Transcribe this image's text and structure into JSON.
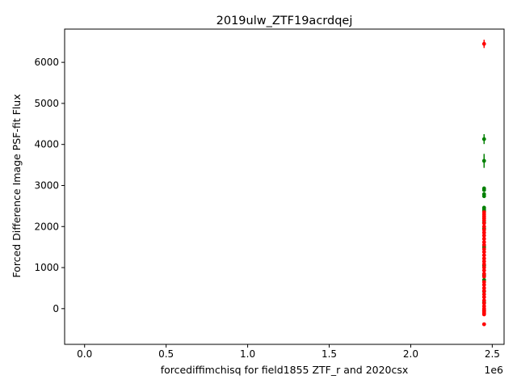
{
  "chart_data": {
    "type": "scatter",
    "title": "2019ulw_ZTF19acrdqej",
    "xlabel": "forcediffimchisq for field1855 ZTF_r and 2020csx",
    "ylabel": "Forced Difference Image PSF-fit Flux",
    "x_offset_label": "1e6",
    "x_multiplier": 1000000,
    "xlim": [
      -0.1225,
      2.5725
    ],
    "ylim": [
      -870,
      6810
    ],
    "x_ticks": [
      0.0,
      0.5,
      1.0,
      1.5,
      2.0,
      2.5
    ],
    "x_tick_labels": [
      "0.0",
      "0.5",
      "1.0",
      "1.5",
      "2.0",
      "2.5"
    ],
    "y_ticks": [
      0,
      1000,
      2000,
      3000,
      4000,
      5000,
      6000
    ],
    "y_tick_labels": [
      "0",
      "1000",
      "2000",
      "3000",
      "4000",
      "5000",
      "6000"
    ],
    "grid": false,
    "legend": "none",
    "series": [
      {
        "color": "#008000",
        "points": [
          {
            "x": 2.45,
            "y": 4130,
            "err": 120
          },
          {
            "x": 2.45,
            "y": 3600,
            "err": 170
          },
          {
            "x": 2.45,
            "y": 2930,
            "err": 30
          },
          {
            "x": 2.45,
            "y": 2890,
            "err": 30
          },
          {
            "x": 2.45,
            "y": 2790,
            "err": 30
          },
          {
            "x": 2.45,
            "y": 2740,
            "err": 30
          },
          {
            "x": 2.45,
            "y": 2460,
            "err": 30
          },
          {
            "x": 2.45,
            "y": 2420,
            "err": 30
          },
          {
            "x": 2.45,
            "y": 2380,
            "err": 30
          },
          {
            "x": 2.45,
            "y": 2100,
            "err": 40
          },
          {
            "x": 2.45,
            "y": 1950,
            "err": 40
          },
          {
            "x": 2.45,
            "y": 1500,
            "err": 40
          },
          {
            "x": 2.45,
            "y": 1050,
            "err": 40
          },
          {
            "x": 2.45,
            "y": 820,
            "err": 40
          },
          {
            "x": 2.45,
            "y": 700,
            "err": 40
          },
          {
            "x": 2.45,
            "y": 420,
            "err": 40
          },
          {
            "x": 2.45,
            "y": 150,
            "err": 40
          },
          {
            "x": 2.45,
            "y": -50,
            "err": 40
          }
        ]
      },
      {
        "color": "#ff0000",
        "points": [
          {
            "x": 2.45,
            "y": 6450,
            "err": 100
          },
          {
            "x": 2.45,
            "y": 2350,
            "err": 40
          },
          {
            "x": 2.45,
            "y": 2300,
            "err": 40
          },
          {
            "x": 2.45,
            "y": 2250,
            "err": 40
          },
          {
            "x": 2.45,
            "y": 2200,
            "err": 40
          },
          {
            "x": 2.45,
            "y": 2150,
            "err": 40
          },
          {
            "x": 2.45,
            "y": 2080,
            "err": 40
          },
          {
            "x": 2.45,
            "y": 2000,
            "err": 40
          },
          {
            "x": 2.45,
            "y": 1920,
            "err": 40
          },
          {
            "x": 2.45,
            "y": 1850,
            "err": 40
          },
          {
            "x": 2.45,
            "y": 1780,
            "err": 40
          },
          {
            "x": 2.45,
            "y": 1700,
            "err": 40
          },
          {
            "x": 2.45,
            "y": 1620,
            "err": 40
          },
          {
            "x": 2.45,
            "y": 1550,
            "err": 40
          },
          {
            "x": 2.45,
            "y": 1450,
            "err": 40
          },
          {
            "x": 2.45,
            "y": 1380,
            "err": 40
          },
          {
            "x": 2.45,
            "y": 1300,
            "err": 40
          },
          {
            "x": 2.45,
            "y": 1220,
            "err": 40
          },
          {
            "x": 2.45,
            "y": 1150,
            "err": 40
          },
          {
            "x": 2.45,
            "y": 1080,
            "err": 40
          },
          {
            "x": 2.45,
            "y": 1000,
            "err": 40
          },
          {
            "x": 2.45,
            "y": 930,
            "err": 40
          },
          {
            "x": 2.45,
            "y": 850,
            "err": 40
          },
          {
            "x": 2.45,
            "y": 780,
            "err": 40
          },
          {
            "x": 2.45,
            "y": 650,
            "err": 40
          },
          {
            "x": 2.45,
            "y": 580,
            "err": 40
          },
          {
            "x": 2.45,
            "y": 500,
            "err": 40
          },
          {
            "x": 2.45,
            "y": 430,
            "err": 40
          },
          {
            "x": 2.45,
            "y": 350,
            "err": 40
          },
          {
            "x": 2.45,
            "y": 280,
            "err": 40
          },
          {
            "x": 2.45,
            "y": 200,
            "err": 40
          },
          {
            "x": 2.45,
            "y": 130,
            "err": 40
          },
          {
            "x": 2.45,
            "y": 60,
            "err": 40
          },
          {
            "x": 2.45,
            "y": 0,
            "err": 40
          },
          {
            "x": 2.45,
            "y": -40,
            "err": 40
          },
          {
            "x": 2.45,
            "y": -80,
            "err": 40
          },
          {
            "x": 2.45,
            "y": -110,
            "err": 40
          },
          {
            "x": 2.45,
            "y": -140,
            "err": 40
          },
          {
            "x": 2.45,
            "y": -380,
            "err": 40
          }
        ]
      }
    ]
  }
}
